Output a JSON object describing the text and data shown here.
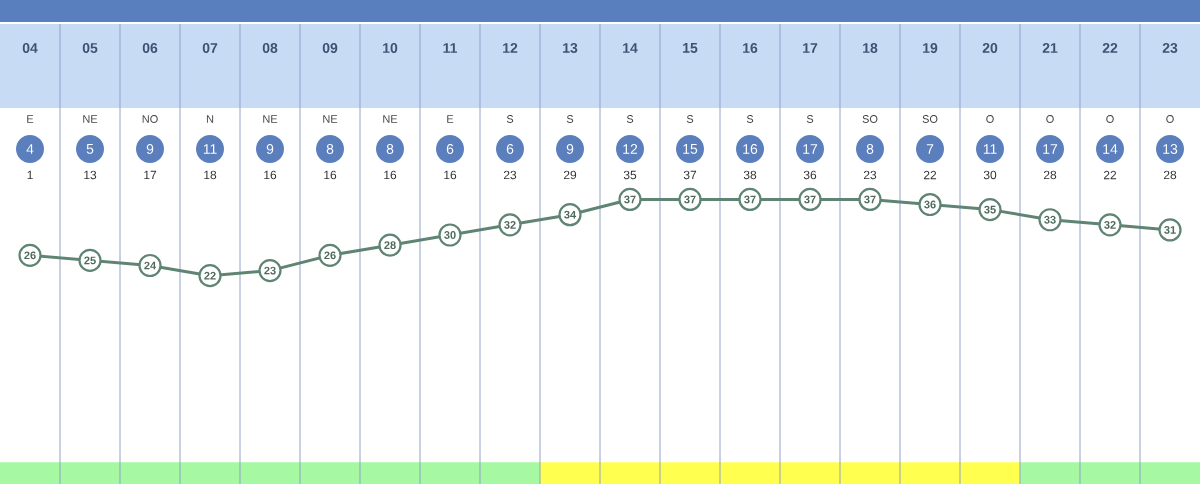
{
  "chart_data": {
    "type": "line",
    "categories": [
      "04",
      "05",
      "06",
      "07",
      "08",
      "09",
      "10",
      "11",
      "12",
      "13",
      "14",
      "15",
      "16",
      "17",
      "18",
      "19",
      "20",
      "21",
      "22",
      "23"
    ],
    "series": [
      {
        "color": "#5f8473",
        "values": [
          26,
          25,
          24,
          22,
          23,
          26,
          28,
          30,
          32,
          34,
          37,
          37,
          37,
          37,
          37,
          36,
          35,
          33,
          32,
          31
        ]
      }
    ],
    "data_labels": true,
    "marker": "circle",
    "ylim": [
      -19,
      55
    ],
    "tick_labels": "x",
    "grid": "x",
    "bands": [
      {
        "axis": "x",
        "from": "04",
        "to": "12",
        "color": "#a6f8a2"
      },
      {
        "axis": "x",
        "from": "13",
        "to": "20",
        "color": "#ffff50"
      },
      {
        "axis": "x",
        "from": "21",
        "to": "23",
        "color": "#a6f8a2"
      }
    ],
    "annotations": [
      "E",
      "NE",
      "NO",
      "N",
      "NE",
      "NE",
      "NE",
      "E",
      "S",
      "S",
      "S",
      "S",
      "S",
      "S",
      "SO",
      "SO",
      "O",
      "O",
      "O",
      "O",
      "4",
      "5",
      "9",
      "11",
      "9",
      "8",
      "8",
      "6",
      "6",
      "9",
      "12",
      "15",
      "16",
      "17",
      "8",
      "7",
      "11",
      "17",
      "14",
      "13",
      "1",
      "13",
      "17",
      "18",
      "16",
      "16",
      "16",
      "16",
      "23",
      "29",
      "35",
      "37",
      "38",
      "36",
      "23",
      "22",
      "30",
      "28",
      "22",
      "28"
    ]
  }
}
